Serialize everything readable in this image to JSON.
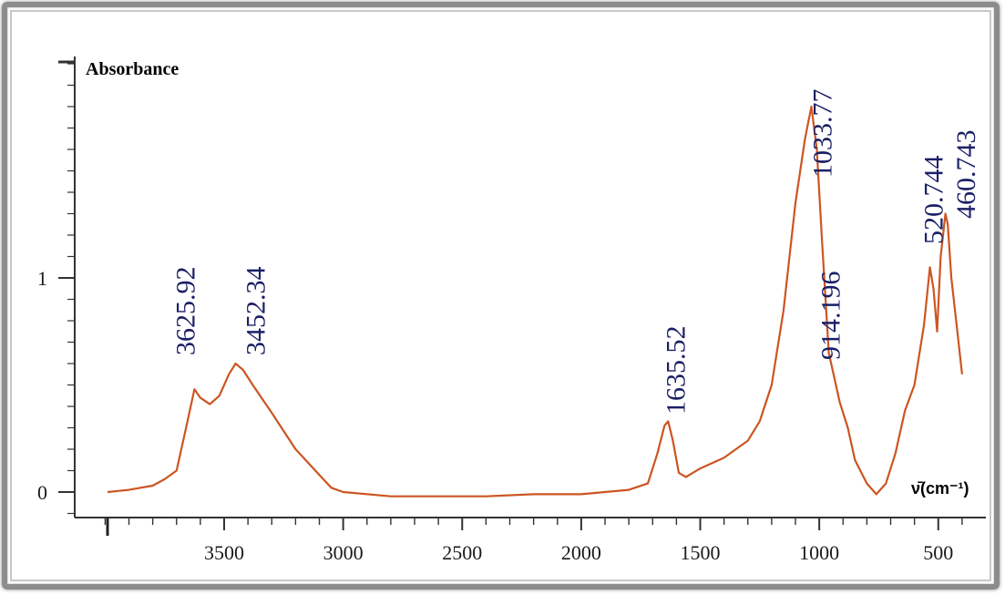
{
  "chart_data": {
    "type": "line",
    "ylabel": "Absorbance",
    "xlabel": "ν̄(cm⁻¹)",
    "xlim": [
      4000,
      390
    ],
    "ylim": [
      0,
      2
    ],
    "x_reversed": true,
    "x_ticks": [
      3500,
      3000,
      2500,
      2000,
      1500,
      1000,
      500
    ],
    "y_ticks": [
      0,
      1
    ],
    "line_color": "#cc5522",
    "label_color": "#1b1f66",
    "series": [
      {
        "points": [
          [
            3990,
            0.0
          ],
          [
            3900,
            0.01
          ],
          [
            3800,
            0.03
          ],
          [
            3750,
            0.06
          ],
          [
            3700,
            0.1
          ],
          [
            3660,
            0.3
          ],
          [
            3625,
            0.48
          ],
          [
            3600,
            0.44
          ],
          [
            3560,
            0.41
          ],
          [
            3520,
            0.45
          ],
          [
            3480,
            0.55
          ],
          [
            3452,
            0.6
          ],
          [
            3420,
            0.57
          ],
          [
            3380,
            0.5
          ],
          [
            3300,
            0.37
          ],
          [
            3200,
            0.2
          ],
          [
            3100,
            0.08
          ],
          [
            3050,
            0.02
          ],
          [
            3000,
            0.0
          ],
          [
            2800,
            -0.02
          ],
          [
            2600,
            -0.02
          ],
          [
            2400,
            -0.02
          ],
          [
            2200,
            -0.01
          ],
          [
            2000,
            -0.01
          ],
          [
            1900,
            0.0
          ],
          [
            1800,
            0.01
          ],
          [
            1720,
            0.04
          ],
          [
            1680,
            0.18
          ],
          [
            1650,
            0.31
          ],
          [
            1635,
            0.33
          ],
          [
            1615,
            0.24
          ],
          [
            1590,
            0.09
          ],
          [
            1560,
            0.07
          ],
          [
            1500,
            0.11
          ],
          [
            1400,
            0.16
          ],
          [
            1300,
            0.24
          ],
          [
            1250,
            0.33
          ],
          [
            1200,
            0.5
          ],
          [
            1150,
            0.85
          ],
          [
            1100,
            1.35
          ],
          [
            1060,
            1.65
          ],
          [
            1033,
            1.8
          ],
          [
            1010,
            1.6
          ],
          [
            990,
            1.2
          ],
          [
            960,
            0.65
          ],
          [
            914,
            0.42
          ],
          [
            880,
            0.3
          ],
          [
            850,
            0.15
          ],
          [
            800,
            0.04
          ],
          [
            760,
            -0.01
          ],
          [
            720,
            0.04
          ],
          [
            680,
            0.18
          ],
          [
            640,
            0.38
          ],
          [
            600,
            0.5
          ],
          [
            560,
            0.78
          ],
          [
            535,
            1.05
          ],
          [
            520,
            0.95
          ],
          [
            505,
            0.75
          ],
          [
            490,
            1.1
          ],
          [
            470,
            1.3
          ],
          [
            460,
            1.25
          ],
          [
            445,
            1.0
          ],
          [
            420,
            0.75
          ],
          [
            400,
            0.55
          ]
        ]
      }
    ],
    "annotations": [
      {
        "text": "3625.92",
        "x": 3625,
        "y": 0.48
      },
      {
        "text": "3452.34",
        "x": 3452,
        "y": 0.6
      },
      {
        "text": "1635.52",
        "x": 1635,
        "y": 0.33
      },
      {
        "text": "1033.77",
        "x": 1033,
        "y": 1.8
      },
      {
        "text": "914.196",
        "x": 914,
        "y": 0.42
      },
      {
        "text": "520.744",
        "x": 520,
        "y": 0.95
      },
      {
        "text": "460.743",
        "x": 460,
        "y": 1.25
      }
    ]
  }
}
